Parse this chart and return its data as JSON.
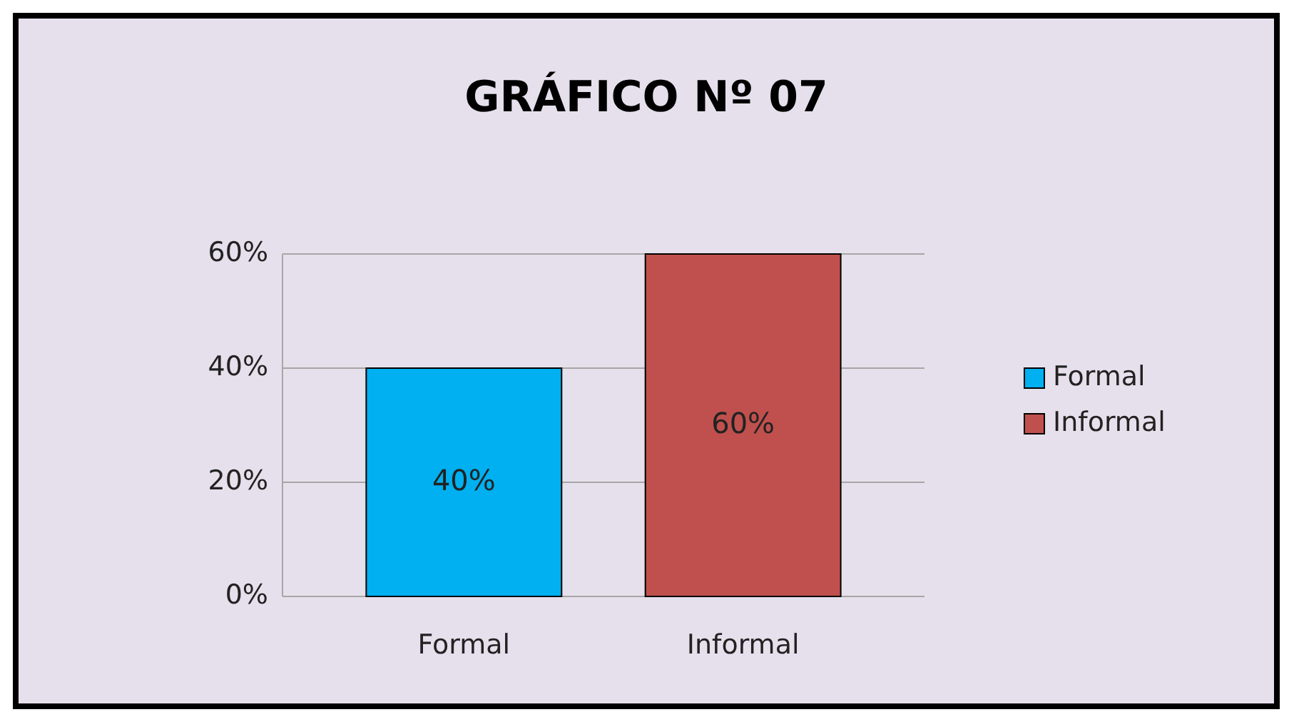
{
  "chart_data": {
    "type": "bar",
    "title": "GRÁFICO Nº 07",
    "categories": [
      "Formal",
      "Informal"
    ],
    "series": [
      {
        "name": "Formal",
        "color": "#00b0f0",
        "values": [
          40,
          null
        ],
        "value_labels": [
          "40%",
          null
        ]
      },
      {
        "name": "Informal",
        "color": "#c0504d",
        "values": [
          null,
          60
        ],
        "value_labels": [
          null,
          "60%"
        ]
      }
    ],
    "ylim": [
      0,
      60
    ],
    "yticks": [
      {
        "value": 0,
        "label": "0%"
      },
      {
        "value": 20,
        "label": "20%"
      },
      {
        "value": 40,
        "label": "40%"
      },
      {
        "value": 60,
        "label": "60%"
      }
    ],
    "grid": "y",
    "legend": "right"
  }
}
